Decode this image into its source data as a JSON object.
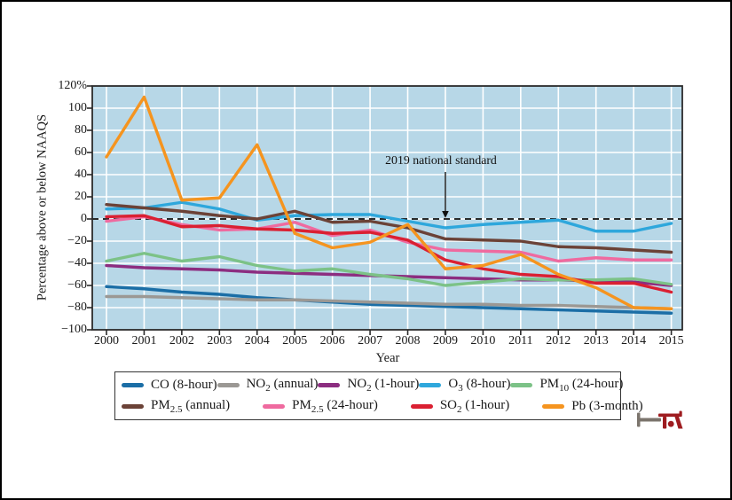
{
  "figure": {
    "y_axis_title": "Percentage above or below NAAQS",
    "x_axis_title": "Year",
    "annotation_label": "2019 national standard"
  },
  "colors": {
    "plot_background": "#b7d7e7",
    "gridline": "#ffffff",
    "axis_frame": "#2b2b2b",
    "zero_dashed_line": "#111111",
    "annotation_arrow": "#111111",
    "logo_red": "#9e1c20",
    "logo_gray": "#7b746c"
  },
  "chart_data": {
    "type": "line",
    "title": "",
    "xlabel": "Year",
    "ylabel": "Percentage above or below NAAQS",
    "x": [
      2000,
      2001,
      2002,
      2003,
      2004,
      2005,
      2006,
      2007,
      2008,
      2009,
      2010,
      2011,
      2012,
      2013,
      2014,
      2015
    ],
    "ylim": [
      -100,
      120
    ],
    "y_tick_values": [
      120,
      100,
      80,
      60,
      40,
      20,
      0,
      -20,
      -40,
      -60,
      -80,
      -100
    ],
    "y_tick_labels": [
      "120%",
      "100",
      "80",
      "60",
      "40",
      "20",
      "0",
      "−20",
      "−40",
      "−60",
      "−80",
      "−100"
    ],
    "grid": true,
    "legend_position": "bottom",
    "zero_reference": {
      "value": 0,
      "style": "dashed",
      "annotation": "2019 national standard",
      "arrow_points_to_year": 2009
    },
    "series": [
      {
        "name": "CO (8-hour)",
        "display": "CO (8-hour)",
        "color": "#1b6ea6",
        "values": [
          -61,
          -63,
          -66,
          -68,
          -71,
          -73,
          -75,
          -77,
          -78,
          -79,
          -80,
          -81,
          -82,
          -83,
          -84,
          -85
        ]
      },
      {
        "name": "NO2 (annual)",
        "display": "NO_{2} (annual)",
        "color": "#9b9894",
        "values": [
          -70,
          -70,
          -71,
          -72,
          -73,
          -73,
          -74,
          -75,
          -76,
          -77,
          -77,
          -78,
          -78,
          -79,
          -80,
          -81
        ]
      },
      {
        "name": "NO2 (1-hour)",
        "display": "NO_{2} (1-hour)",
        "color": "#8c2d80",
        "values": [
          -42,
          -44,
          -45,
          -46,
          -48,
          -49,
          -50,
          -51,
          -52,
          -53,
          -54,
          -55,
          -55,
          -56,
          -57,
          -60
        ]
      },
      {
        "name": "O3 (8-hour)",
        "display": "O_{3} (8-hour)",
        "color": "#2ea7dc",
        "values": [
          9,
          10,
          15,
          9,
          -1,
          3,
          4,
          4,
          -2,
          -8,
          -5,
          -3,
          -1,
          -11,
          -11,
          -4
        ]
      },
      {
        "name": "PM10 (24-hour)",
        "display": "PM_{10} (24-hour)",
        "color": "#7cc287",
        "values": [
          -38,
          -31,
          -38,
          -34,
          -42,
          -47,
          -45,
          -50,
          -54,
          -60,
          -57,
          -54,
          -55,
          -55,
          -54,
          -59
        ]
      },
      {
        "name": "PM2.5 (annual)",
        "display": "PM_{2.5} (annual)",
        "color": "#6b4237",
        "values": [
          13,
          10,
          7,
          3,
          0,
          7,
          -3,
          -2,
          -8,
          -18,
          -19,
          -20,
          -25,
          -26,
          -28,
          -30
        ]
      },
      {
        "name": "PM2.5 (24-hour)",
        "display": "PM_{2.5} (24-hour)",
        "color": "#ef6a9f",
        "values": [
          -2,
          2,
          -5,
          -10,
          -9,
          -3,
          -15,
          -10,
          -21,
          -28,
          -29,
          -30,
          -38,
          -35,
          -37,
          -37
        ]
      },
      {
        "name": "SO2 (1-hour)",
        "display": "SO_{2} (1-hour)",
        "color": "#da2032",
        "values": [
          2,
          3,
          -7,
          -6,
          -9,
          -10,
          -13,
          -12,
          -19,
          -37,
          -45,
          -50,
          -52,
          -58,
          -58,
          -66
        ]
      },
      {
        "name": "Pb (3-month)",
        "display": "Pb (3-month)",
        "color": "#f5941f",
        "values": [
          56,
          110,
          17,
          19,
          67,
          -13,
          -26,
          -21,
          -5,
          -45,
          -42,
          -32,
          -50,
          -62,
          -80,
          -81
        ]
      }
    ],
    "legend_rows": [
      [
        0,
        1,
        2,
        3,
        4
      ],
      [
        5,
        6,
        7,
        8
      ]
    ]
  }
}
